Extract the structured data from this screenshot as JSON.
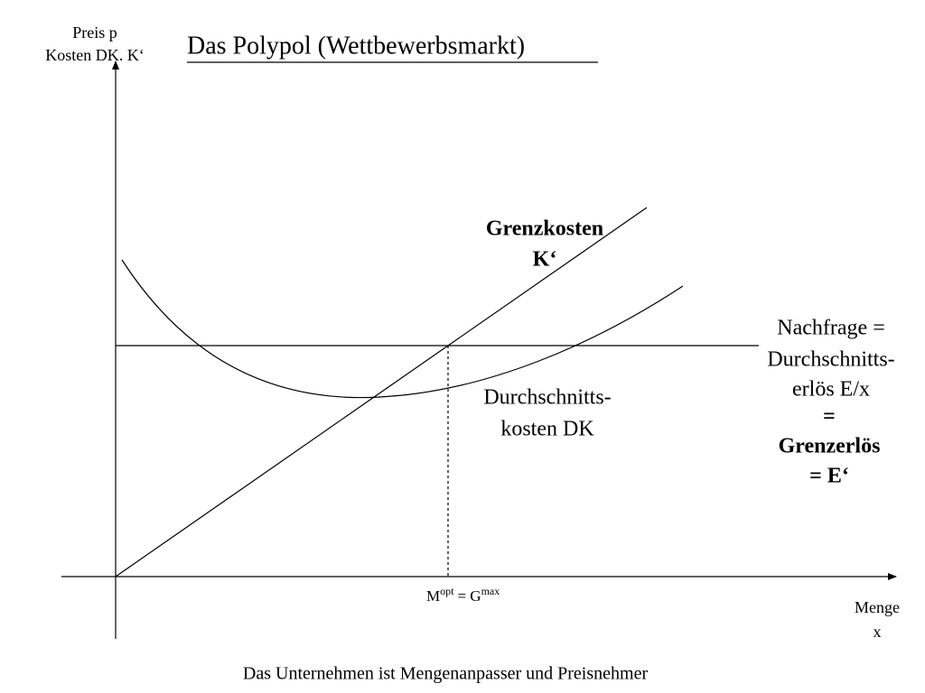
{
  "title": "Das Polypol (Wettbewerbsmarkt)",
  "axes": {
    "y_label": [
      "Preis p",
      "Kosten DK. K‘"
    ],
    "x_label": [
      "Menge",
      "x"
    ]
  },
  "curves": {
    "marginal_cost": [
      "Grenzkosten",
      "K‘"
    ],
    "average_cost": [
      "Durchschnitts-",
      "kosten DK"
    ],
    "demand": [
      "Nachfrage =",
      "Durchschnitts-",
      "erlös E/x",
      "=",
      "Grenzerlös",
      "= E‘"
    ]
  },
  "optimum": {
    "base": "M",
    "sup1": "opt",
    "mid": "= G",
    "sup2": "max"
  },
  "footer": "Das Unternehmen ist Mengenanpasser und Preisnehmer"
}
